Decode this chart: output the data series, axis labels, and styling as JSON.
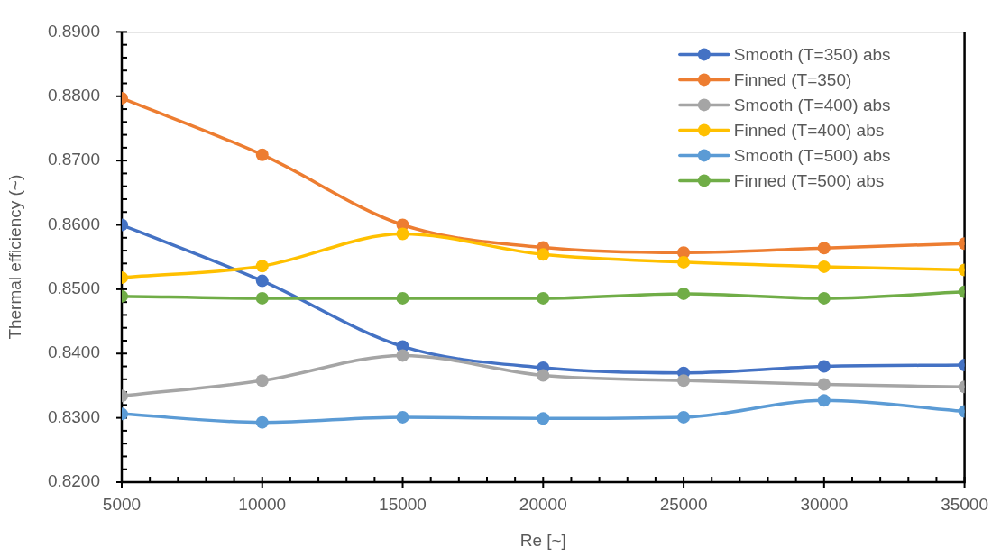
{
  "chart_data": {
    "type": "line",
    "xlabel": "Re [~]",
    "ylabel": "Thermal efficiency (~)",
    "x": [
      5000,
      10000,
      15000,
      20000,
      25000,
      30000,
      35000
    ],
    "xlim": [
      5000,
      35000
    ],
    "xticks": [
      5000,
      {
        "value": 6000,
        "label": null
      },
      {
        "value": 7000,
        "label": null
      },
      {
        "value": 8000,
        "label": null
      },
      {
        "value": 9000,
        "label": null
      },
      10000,
      {
        "value": 11000,
        "label": null
      },
      {
        "value": 12000,
        "label": null
      },
      {
        "value": 13000,
        "label": null
      },
      {
        "value": 14000,
        "label": null
      },
      15000,
      {
        "value": 16000,
        "label": null
      },
      {
        "value": 17000,
        "label": null
      },
      {
        "value": 18000,
        "label": null
      },
      {
        "value": 19000,
        "label": null
      },
      20000,
      {
        "value": 21000,
        "label": null
      },
      {
        "value": 22000,
        "label": null
      },
      {
        "value": 23000,
        "label": null
      },
      {
        "value": 24000,
        "label": null
      },
      25000,
      {
        "value": 26000,
        "label": null
      },
      {
        "value": 27000,
        "label": null
      },
      {
        "value": 28000,
        "label": null
      },
      {
        "value": 29000,
        "label": null
      },
      30000,
      {
        "value": 31000,
        "label": null
      },
      {
        "value": 32000,
        "label": null
      },
      {
        "value": 33000,
        "label": null
      },
      {
        "value": 34000,
        "label": null
      },
      35000
    ],
    "ylim": [
      0.82,
      0.89
    ],
    "yticks": [
      {
        "value": 0.82,
        "label": "0.8200"
      },
      {
        "value": 0.822,
        "label": null
      },
      {
        "value": 0.824,
        "label": null
      },
      {
        "value": 0.826,
        "label": null
      },
      {
        "value": 0.828,
        "label": null
      },
      {
        "value": 0.83,
        "label": "0.8300"
      },
      {
        "value": 0.832,
        "label": null
      },
      {
        "value": 0.834,
        "label": null
      },
      {
        "value": 0.836,
        "label": null
      },
      {
        "value": 0.838,
        "label": null
      },
      {
        "value": 0.84,
        "label": "0.8400"
      },
      {
        "value": 0.842,
        "label": null
      },
      {
        "value": 0.844,
        "label": null
      },
      {
        "value": 0.846,
        "label": null
      },
      {
        "value": 0.848,
        "label": null
      },
      {
        "value": 0.85,
        "label": "0.8500"
      },
      {
        "value": 0.852,
        "label": null
      },
      {
        "value": 0.854,
        "label": null
      },
      {
        "value": 0.856,
        "label": null
      },
      {
        "value": 0.858,
        "label": null
      },
      {
        "value": 0.86,
        "label": "0.8600"
      },
      {
        "value": 0.862,
        "label": null
      },
      {
        "value": 0.864,
        "label": null
      },
      {
        "value": 0.866,
        "label": null
      },
      {
        "value": 0.868,
        "label": null
      },
      {
        "value": 0.87,
        "label": "0.8700"
      },
      {
        "value": 0.872,
        "label": null
      },
      {
        "value": 0.874,
        "label": null
      },
      {
        "value": 0.876,
        "label": null
      },
      {
        "value": 0.878,
        "label": null
      },
      {
        "value": 0.88,
        "label": "0.8800"
      },
      {
        "value": 0.882,
        "label": null
      },
      {
        "value": 0.884,
        "label": null
      },
      {
        "value": 0.886,
        "label": null
      },
      {
        "value": 0.888,
        "label": null
      },
      {
        "value": 0.89,
        "label": "0.8900"
      }
    ],
    "marker": "circle",
    "line_style": "solid",
    "legend": "top right",
    "series": [
      {
        "name": "Smooth (T=350) abs",
        "color": "#4472c4",
        "values": [
          0.86,
          0.8513,
          0.8411,
          0.8378,
          0.837,
          0.838,
          0.8382
        ]
      },
      {
        "name": "Finned (T=350)",
        "color": "#ed7d31",
        "values": [
          0.8797,
          0.8709,
          0.86,
          0.8565,
          0.8557,
          0.8564,
          0.8571
        ]
      },
      {
        "name": "Smooth (T=400) abs",
        "color": "#a5a5a5",
        "values": [
          0.8334,
          0.8358,
          0.8397,
          0.8366,
          0.8358,
          0.8352,
          0.8348
        ]
      },
      {
        "name": "Finned (T=400) abs",
        "color": "#ffc000",
        "values": [
          0.8518,
          0.8536,
          0.8586,
          0.8554,
          0.8542,
          0.8535,
          0.853
        ]
      },
      {
        "name": "Smooth (T=500) abs",
        "color": "#5b9bd5",
        "values": [
          0.8306,
          0.8293,
          0.8301,
          0.8299,
          0.8301,
          0.8327,
          0.831
        ]
      },
      {
        "name": "Finned (T=500) abs",
        "color": "#70ad47",
        "values": [
          0.8489,
          0.8486,
          0.8486,
          0.8486,
          0.8493,
          0.8486,
          0.8496
        ]
      }
    ]
  }
}
